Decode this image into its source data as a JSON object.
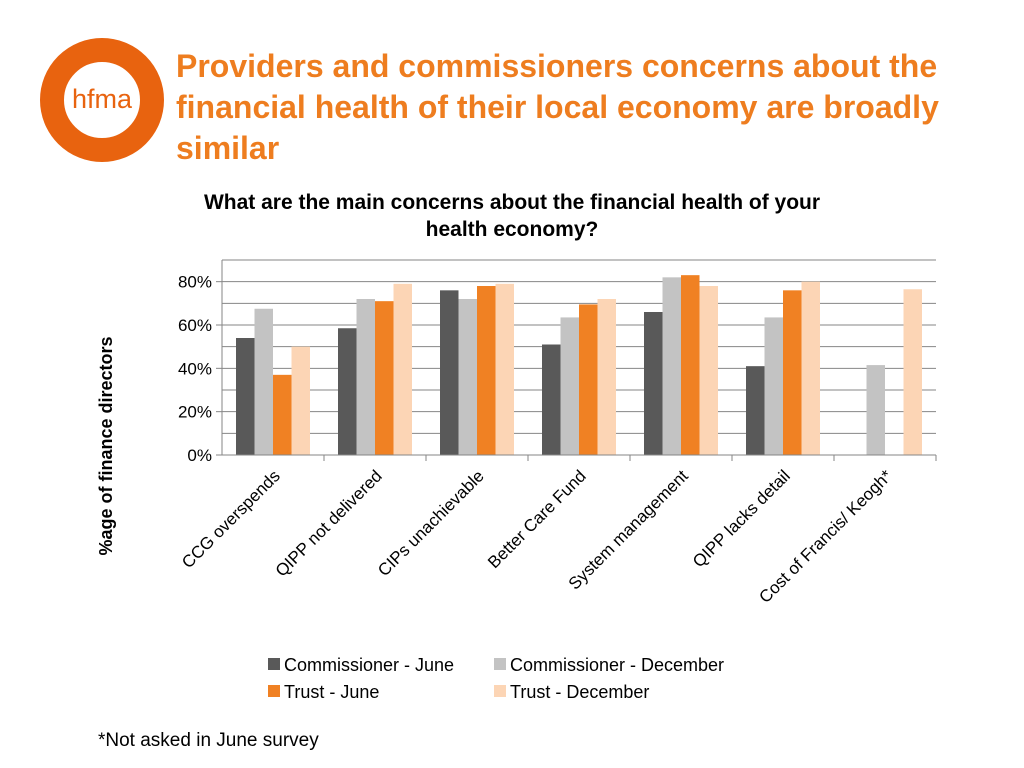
{
  "logo": {
    "text": "hfma",
    "color": "#e8630f"
  },
  "slide": {
    "title": "Providers and commissioners concerns about the financial health of their local economy are broadly similar",
    "footnote": "*Not asked in June survey"
  },
  "chart_data": {
    "type": "bar",
    "title": [
      "What are the main concerns about the financial health of your",
      "health economy?"
    ],
    "ylabel": "%age of finance directors",
    "xlabel": "",
    "ylim": [
      0,
      0.9
    ],
    "yticks": [
      0,
      0.2,
      0.4,
      0.6,
      0.8
    ],
    "ytick_labels": [
      "0%",
      "20%",
      "40%",
      "60%",
      "80%"
    ],
    "grid": true,
    "legend_position": "bottom",
    "categories": [
      "CCG overspends",
      "QIPP not delivered",
      "CIPs unachievable",
      "Better Care Fund",
      "System management",
      "QIPP lacks detail",
      "Cost of Francis/ Keogh*"
    ],
    "series": [
      {
        "name": "Commissioner  - June",
        "color": "#595959",
        "values": [
          0.54,
          0.585,
          0.76,
          0.51,
          0.66,
          0.41,
          null
        ]
      },
      {
        "name": "Commissioner  - December",
        "color": "#c3c3c3",
        "values": [
          0.675,
          0.72,
          0.72,
          0.635,
          0.82,
          0.635,
          0.415
        ]
      },
      {
        "name": "Trust  - June",
        "color": "#f08123",
        "values": [
          0.37,
          0.71,
          0.78,
          0.695,
          0.83,
          0.76,
          null
        ]
      },
      {
        "name": "Trust  - December",
        "color": "#fcd5b5",
        "values": [
          0.5,
          0.79,
          0.79,
          0.72,
          0.78,
          0.8,
          0.765
        ]
      }
    ]
  }
}
